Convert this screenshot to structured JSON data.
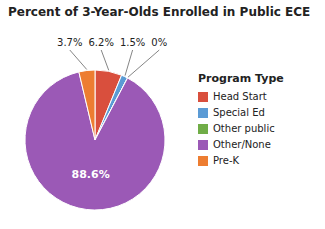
{
  "chart_data": {
    "type": "pie",
    "title": "Percent of 3-Year-Olds Enrolled in Public ECE",
    "categories": [
      "Head Start",
      "Special Ed",
      "Other public",
      "Other/None",
      "Pre-K"
    ],
    "values": [
      6.2,
      1.5,
      0.0,
      88.6,
      3.7
    ],
    "value_labels": [
      "6.2%",
      "1.5%",
      "0%",
      "88.6%",
      "3.7%"
    ],
    "colors": [
      "#d94f3d",
      "#5b9bd5",
      "#70ad47",
      "#9b59b6",
      "#ed7d31"
    ],
    "legend_title": "Program Type",
    "legend": "right",
    "data_labels": true
  }
}
